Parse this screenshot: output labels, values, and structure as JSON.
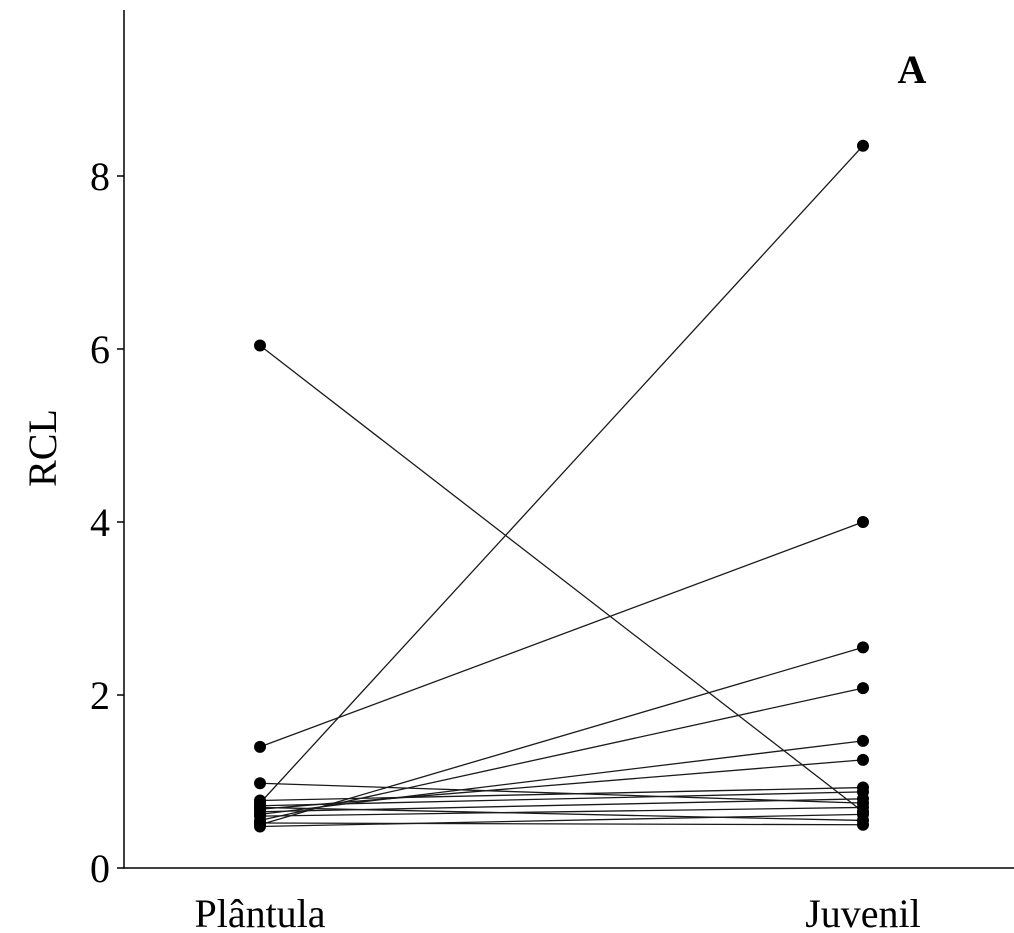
{
  "chart_data": {
    "type": "line",
    "panel_label": "A",
    "xlabel": "",
    "ylabel": "RCL",
    "categories": [
      "Plântula",
      "Juvenil"
    ],
    "yticks": [
      "0",
      "2",
      "4",
      "6",
      "8"
    ],
    "ylim": [
      0,
      9.8
    ],
    "grid": false,
    "legend": "none",
    "series": [
      {
        "values": [
          6.04,
          0.65
        ]
      },
      {
        "values": [
          0.75,
          8.35
        ]
      },
      {
        "values": [
          1.4,
          4.0
        ]
      },
      {
        "values": [
          0.5,
          2.55
        ]
      },
      {
        "values": [
          0.55,
          2.08
        ]
      },
      {
        "values": [
          0.62,
          1.47
        ]
      },
      {
        "values": [
          0.68,
          1.25
        ]
      },
      {
        "values": [
          0.98,
          0.75
        ]
      },
      {
        "values": [
          0.78,
          0.93
        ]
      },
      {
        "values": [
          0.72,
          0.88
        ]
      },
      {
        "values": [
          0.7,
          0.55
        ]
      },
      {
        "values": [
          0.65,
          0.8
        ]
      },
      {
        "values": [
          0.6,
          0.7
        ]
      },
      {
        "values": [
          0.52,
          0.5
        ]
      },
      {
        "values": [
          0.48,
          0.62
        ]
      }
    ]
  }
}
